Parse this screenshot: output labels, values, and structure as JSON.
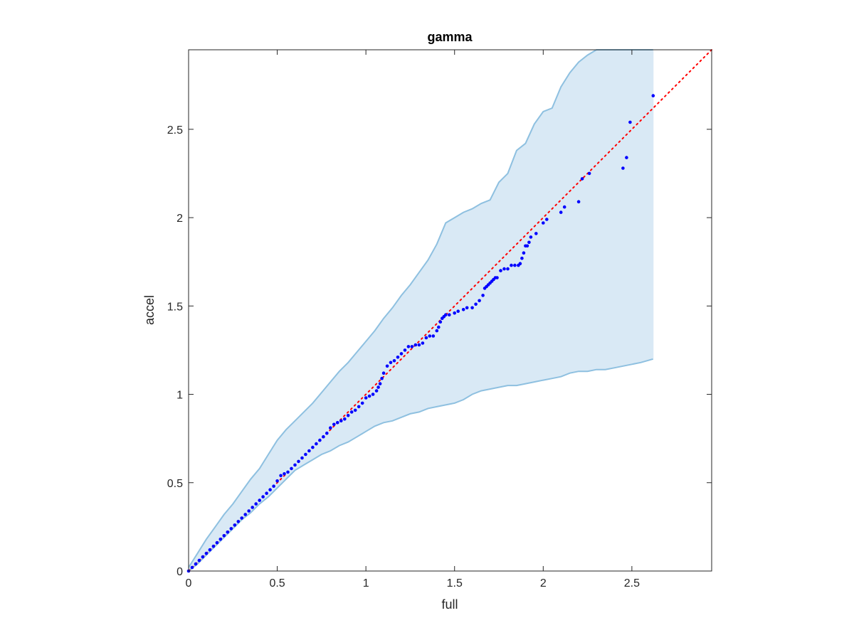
{
  "chart_data": {
    "type": "scatter",
    "title": "gamma",
    "xlabel": "full",
    "ylabel": "accel",
    "xlim": [
      0,
      2.95
    ],
    "ylim": [
      0,
      2.95
    ],
    "xticks": [
      0,
      0.5,
      1,
      1.5,
      2,
      2.5
    ],
    "yticks": [
      0,
      0.5,
      1,
      1.5,
      2,
      2.5
    ],
    "xtick_labels": [
      "0",
      "0.5",
      "1",
      "1.5",
      "2",
      "2.5"
    ],
    "ytick_labels": [
      "0",
      "0.5",
      "1",
      "1.5",
      "2",
      "2.5"
    ],
    "grid": false,
    "colors": {
      "points": "#0000ff",
      "reference_line": "#ff0000",
      "band_fill": "#d9e9f5",
      "band_edge": "#8ec0e0",
      "axes": "#262626"
    },
    "reference_line": {
      "style": "dotted",
      "x": [
        0,
        2.95
      ],
      "y": [
        0,
        2.95
      ]
    },
    "band_upper": {
      "x": [
        0,
        0.05,
        0.1,
        0.15,
        0.2,
        0.25,
        0.3,
        0.35,
        0.4,
        0.45,
        0.5,
        0.55,
        0.6,
        0.65,
        0.7,
        0.75,
        0.8,
        0.85,
        0.9,
        0.95,
        1.0,
        1.05,
        1.1,
        1.15,
        1.2,
        1.25,
        1.3,
        1.35,
        1.4,
        1.45,
        1.5,
        1.55,
        1.6,
        1.65,
        1.7,
        1.75,
        1.8,
        1.85,
        1.9,
        1.95,
        2.0,
        2.05,
        2.1,
        2.15,
        2.2,
        2.25,
        2.3,
        2.35,
        2.4,
        2.45,
        2.5,
        2.55,
        2.62
      ],
      "y": [
        0.02,
        0.1,
        0.18,
        0.25,
        0.32,
        0.38,
        0.45,
        0.52,
        0.58,
        0.66,
        0.74,
        0.8,
        0.85,
        0.9,
        0.95,
        1.01,
        1.07,
        1.13,
        1.18,
        1.24,
        1.3,
        1.36,
        1.43,
        1.49,
        1.56,
        1.62,
        1.69,
        1.76,
        1.85,
        1.97,
        2.0,
        2.03,
        2.05,
        2.08,
        2.1,
        2.2,
        2.25,
        2.38,
        2.42,
        2.53,
        2.6,
        2.62,
        2.74,
        2.82,
        2.88,
        2.92,
        2.95,
        2.95,
        2.95,
        2.95,
        2.95,
        2.95,
        2.95
      ]
    },
    "band_lower": {
      "x": [
        0,
        0.05,
        0.1,
        0.15,
        0.2,
        0.25,
        0.3,
        0.35,
        0.4,
        0.45,
        0.5,
        0.55,
        0.6,
        0.65,
        0.7,
        0.75,
        0.8,
        0.85,
        0.9,
        0.95,
        1.0,
        1.05,
        1.1,
        1.15,
        1.2,
        1.25,
        1.3,
        1.35,
        1.4,
        1.45,
        1.5,
        1.55,
        1.6,
        1.65,
        1.7,
        1.75,
        1.8,
        1.85,
        1.9,
        1.95,
        2.0,
        2.05,
        2.1,
        2.15,
        2.2,
        2.25,
        2.3,
        2.35,
        2.4,
        2.45,
        2.5,
        2.55,
        2.62
      ],
      "y": [
        0.0,
        0.04,
        0.09,
        0.14,
        0.19,
        0.24,
        0.29,
        0.33,
        0.38,
        0.42,
        0.47,
        0.52,
        0.57,
        0.6,
        0.63,
        0.66,
        0.68,
        0.71,
        0.73,
        0.76,
        0.79,
        0.82,
        0.84,
        0.85,
        0.87,
        0.89,
        0.9,
        0.92,
        0.93,
        0.94,
        0.95,
        0.97,
        1.0,
        1.02,
        1.03,
        1.04,
        1.05,
        1.05,
        1.06,
        1.07,
        1.08,
        1.09,
        1.1,
        1.12,
        1.13,
        1.13,
        1.14,
        1.14,
        1.15,
        1.16,
        1.17,
        1.18,
        1.2
      ]
    },
    "series": [
      {
        "x": [
          0.0,
          0.02,
          0.04,
          0.06,
          0.08,
          0.1,
          0.12,
          0.14,
          0.16,
          0.18,
          0.2,
          0.22,
          0.24,
          0.26,
          0.28,
          0.3,
          0.32,
          0.34,
          0.36,
          0.38,
          0.4,
          0.42,
          0.44,
          0.46,
          0.48,
          0.5,
          0.52,
          0.54,
          0.56,
          0.58,
          0.6,
          0.62,
          0.64,
          0.66,
          0.68,
          0.7,
          0.72,
          0.74,
          0.76,
          0.78,
          0.8,
          0.82,
          0.84,
          0.86,
          0.88,
          0.9,
          0.92,
          0.94,
          0.96,
          0.98,
          1.0,
          1.02,
          1.04,
          1.06,
          1.07,
          1.08,
          1.09,
          1.1,
          1.12,
          1.14,
          1.16,
          1.18,
          1.2,
          1.22,
          1.24,
          1.26,
          1.28,
          1.3,
          1.32,
          1.34,
          1.36,
          1.38,
          1.4,
          1.41,
          1.42,
          1.43,
          1.44,
          1.45,
          1.47,
          1.5,
          1.52,
          1.55,
          1.57,
          1.6,
          1.62,
          1.64,
          1.66,
          1.67,
          1.68,
          1.69,
          1.7,
          1.71,
          1.72,
          1.73,
          1.74,
          1.76,
          1.78,
          1.8,
          1.82,
          1.84,
          1.86,
          1.87,
          1.88,
          1.89,
          1.9,
          1.91,
          1.92,
          1.93,
          1.96,
          2.0,
          2.02,
          2.1,
          2.12,
          2.2,
          2.22,
          2.26,
          2.45,
          2.47,
          2.49,
          2.62
        ],
        "y": [
          0.0,
          0.02,
          0.04,
          0.06,
          0.08,
          0.1,
          0.12,
          0.14,
          0.16,
          0.18,
          0.2,
          0.22,
          0.24,
          0.26,
          0.28,
          0.3,
          0.32,
          0.34,
          0.36,
          0.38,
          0.4,
          0.42,
          0.44,
          0.46,
          0.48,
          0.51,
          0.54,
          0.55,
          0.56,
          0.58,
          0.6,
          0.62,
          0.64,
          0.66,
          0.68,
          0.7,
          0.72,
          0.74,
          0.76,
          0.78,
          0.81,
          0.83,
          0.84,
          0.85,
          0.86,
          0.88,
          0.9,
          0.91,
          0.93,
          0.95,
          0.98,
          0.99,
          1.0,
          1.02,
          1.04,
          1.06,
          1.09,
          1.12,
          1.16,
          1.18,
          1.19,
          1.21,
          1.23,
          1.25,
          1.27,
          1.27,
          1.28,
          1.28,
          1.29,
          1.32,
          1.33,
          1.33,
          1.36,
          1.38,
          1.41,
          1.43,
          1.44,
          1.45,
          1.45,
          1.46,
          1.47,
          1.48,
          1.49,
          1.49,
          1.51,
          1.53,
          1.56,
          1.6,
          1.61,
          1.62,
          1.63,
          1.64,
          1.65,
          1.66,
          1.66,
          1.7,
          1.71,
          1.71,
          1.73,
          1.73,
          1.73,
          1.74,
          1.77,
          1.8,
          1.84,
          1.84,
          1.86,
          1.89,
          1.91,
          1.97,
          1.99,
          2.03,
          2.06,
          2.09,
          2.22,
          2.25,
          2.28,
          2.34,
          2.54,
          2.69
        ]
      }
    ]
  }
}
